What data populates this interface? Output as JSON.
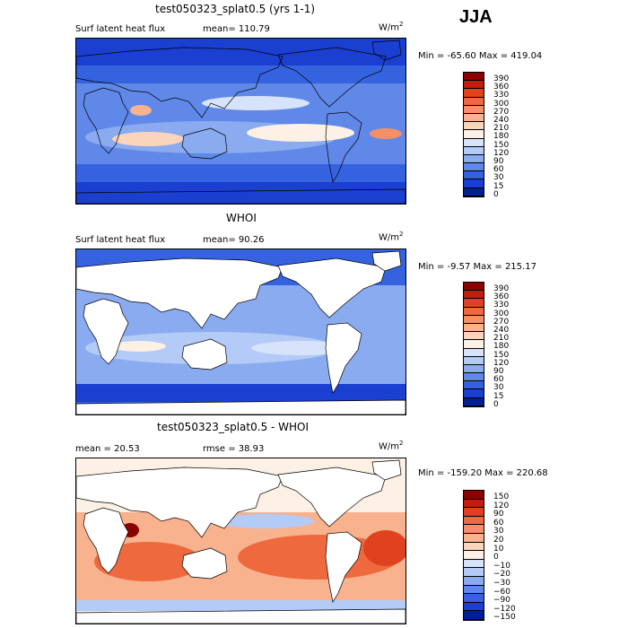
{
  "season": "JJA",
  "chart_data": [
    {
      "type": "heatmap",
      "title": "test050323_splat0.5 (yrs 1-1)",
      "subtitle": "Surf latent heat flux",
      "stat_text": "mean=  110.79",
      "units": "W/m",
      "units_exp": "2",
      "minmax_text": "Min = -65.60 Max = 419.04",
      "levels": [
        "390",
        "360",
        "330",
        "300",
        "270",
        "240",
        "210",
        "180",
        "150",
        "120",
        "90",
        "60",
        "30",
        "15",
        "0"
      ],
      "colors": [
        "#8b0000",
        "#c21d0f",
        "#e0411f",
        "#ee6a3e",
        "#f59066",
        "#f8b28d",
        "#fbd5bb",
        "#fdf0e4",
        "#d7e3fb",
        "#b3cbf6",
        "#8aabf0",
        "#5f88e8",
        "#3563e0",
        "#1b3fd0",
        "#001f96"
      ]
    },
    {
      "type": "heatmap",
      "title": "WHOI",
      "subtitle": "Surf latent heat flux",
      "stat_text": "mean=   90.26",
      "units": "W/m",
      "units_exp": "2",
      "minmax_text": "Min =  -9.57 Max = 215.17",
      "levels": [
        "390",
        "360",
        "330",
        "300",
        "270",
        "240",
        "210",
        "180",
        "150",
        "120",
        "90",
        "60",
        "30",
        "15",
        "0"
      ],
      "colors": [
        "#8b0000",
        "#c21d0f",
        "#e0411f",
        "#ee6a3e",
        "#f59066",
        "#f8b28d",
        "#fbd5bb",
        "#fdf0e4",
        "#d7e3fb",
        "#b3cbf6",
        "#8aabf0",
        "#5f88e8",
        "#3563e0",
        "#1b3fd0",
        "#001f96"
      ]
    },
    {
      "type": "heatmap",
      "title": "test050323_splat0.5 - WHOI",
      "subtitle": "mean =   20.53",
      "stat_text": "rmse =   38.93",
      "units": "W/m",
      "units_exp": "2",
      "minmax_text": "Min = -159.20 Max = 220.68",
      "levels": [
        "150",
        "120",
        "90",
        "60",
        "30",
        "20",
        "10",
        "0",
        "−10",
        "−20",
        "−30",
        "−60",
        "−90",
        "−120",
        "−150"
      ],
      "colors": [
        "#8b0000",
        "#c21d0f",
        "#e0411f",
        "#ee6a3e",
        "#f59066",
        "#f8b28d",
        "#fbd5bb",
        "#fdf0e4",
        "#d7e3fb",
        "#b3cbf6",
        "#8aabf0",
        "#5f88e8",
        "#3563e0",
        "#1b3fd0",
        "#001f96"
      ]
    }
  ]
}
